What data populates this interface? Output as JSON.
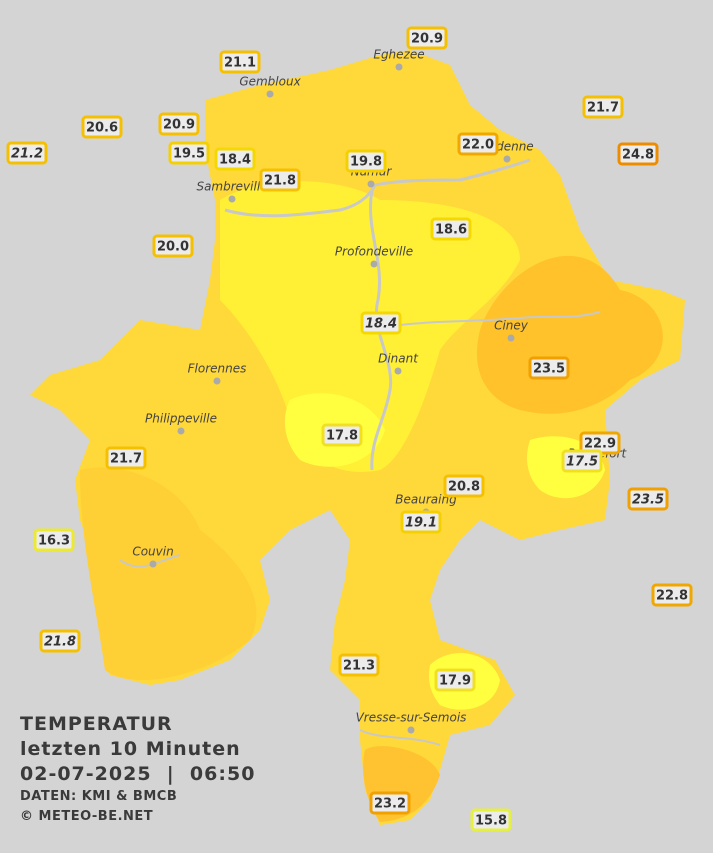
{
  "title": {
    "heading": "TEMPERATUR",
    "subheading": "letzten 10 Minuten",
    "timestamp": "02-07-2025  |  06:50",
    "source": "DATEN: KMI & BMCB",
    "credit": "© METEO-BE.NET"
  },
  "cities": [
    "Eghezee",
    "Gembloux",
    "Andenne",
    "Namur",
    "Sambreville",
    "Profondeville",
    "Ciney",
    "Dinant",
    "Florennes",
    "Philippeville",
    "Rochefort",
    "Beauraing",
    "Couvin",
    "Vresse-sur-Semois"
  ],
  "stations": [
    {
      "label": "21.1",
      "color": "#f5c000"
    },
    {
      "label": "20.9",
      "color": "#f5c000"
    },
    {
      "label": "20.6",
      "color": "#f5c000"
    },
    {
      "label": "20.9",
      "color": "#f5c000"
    },
    {
      "label": "21.2",
      "color": "#f5c000",
      "italic": true
    },
    {
      "label": "19.5",
      "color": "#f5d000"
    },
    {
      "label": "18.4",
      "color": "#f5d800"
    },
    {
      "label": "21.8",
      "color": "#f5c000"
    },
    {
      "label": "19.8",
      "color": "#f5d000"
    },
    {
      "label": "22.0",
      "color": "#f0a800"
    },
    {
      "label": "21.7",
      "color": "#f5c000"
    },
    {
      "label": "24.8",
      "color": "#ee8c00"
    },
    {
      "label": "20.0",
      "color": "#f5c000"
    },
    {
      "label": "18.6",
      "color": "#f5d800"
    },
    {
      "label": "18.4",
      "color": "#f5d800",
      "italic": true
    },
    {
      "label": "23.5",
      "color": "#f0a000"
    },
    {
      "label": "17.8",
      "color": "#f0e020"
    },
    {
      "label": "22.9",
      "color": "#f0a800"
    },
    {
      "label": "17.5",
      "color": "#f0e020",
      "italic": true
    },
    {
      "label": "21.7",
      "color": "#f5c000"
    },
    {
      "label": "20.8",
      "color": "#f5c000"
    },
    {
      "label": "23.5",
      "color": "#f0a000",
      "italic": true
    },
    {
      "label": "19.1",
      "color": "#f5d000",
      "italic": true
    },
    {
      "label": "16.3",
      "color": "#ecea30"
    },
    {
      "label": "22.8",
      "color": "#f0a800"
    },
    {
      "label": "21.8",
      "color": "#f5c000",
      "italic": true
    },
    {
      "label": "21.3",
      "color": "#f5c000"
    },
    {
      "label": "17.9",
      "color": "#f0e020"
    },
    {
      "label": "23.2",
      "color": "#f0a000"
    },
    {
      "label": "15.8",
      "color": "#e6f040"
    }
  ]
}
